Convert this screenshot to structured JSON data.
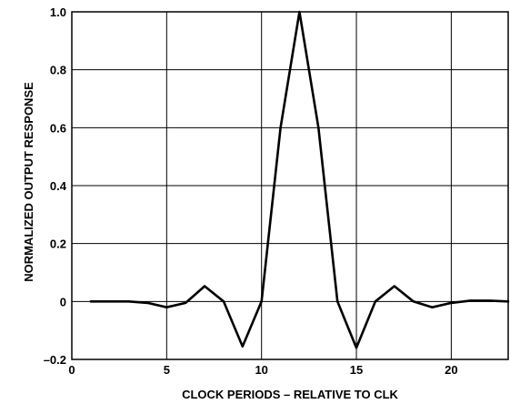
{
  "chart_data": {
    "type": "line",
    "title": "",
    "xlabel": "CLOCK PERIODS – RELATIVE TO CLK",
    "ylabel": "NORMALIZED OUTPUT RESPONSE",
    "xlim": [
      0,
      23
    ],
    "ylim": [
      -0.2,
      1.0
    ],
    "x_ticks": [
      0,
      5,
      10,
      15,
      20
    ],
    "x_tick_labels": [
      "0",
      "5",
      "10",
      "15",
      "20"
    ],
    "y_ticks": [
      -0.2,
      0,
      0.2,
      0.4,
      0.6,
      0.8,
      1.0
    ],
    "y_tick_labels": [
      "–0.2",
      "0",
      "0.2",
      "0.4",
      "0.6",
      "0.8",
      "1.0"
    ],
    "grid": true,
    "series": [
      {
        "x": [
          1,
          2,
          3,
          4,
          5,
          6,
          7,
          8,
          9,
          10,
          11,
          12,
          13,
          14,
          15,
          16,
          17,
          18,
          19,
          20,
          21,
          22,
          23
        ],
        "values": [
          0,
          0,
          0,
          -0.005,
          -0.02,
          -0.005,
          0.053,
          0,
          -0.155,
          0,
          0.6,
          1.0,
          0.6,
          0,
          -0.16,
          0,
          0.053,
          0,
          -0.02,
          -0.005,
          0.003,
          0.003,
          0
        ],
        "color": "#000000"
      }
    ]
  }
}
